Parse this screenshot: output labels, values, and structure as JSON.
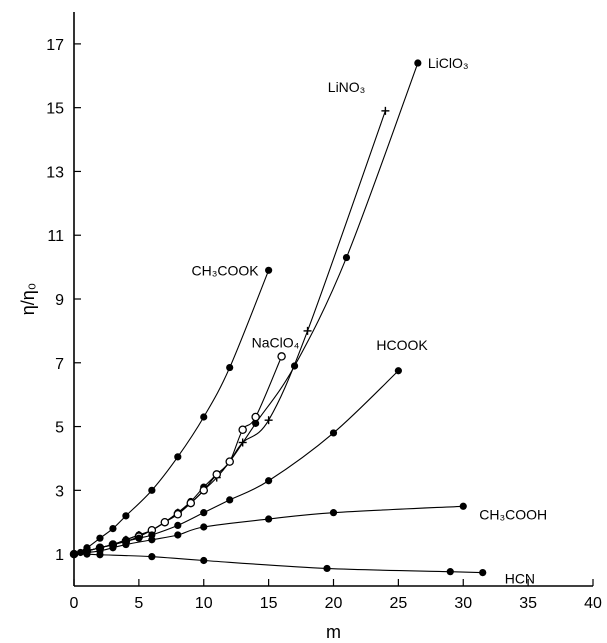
{
  "chart_data": {
    "type": "line",
    "xlabel": "m",
    "ylabel": "η/η₀",
    "xlim": [
      0,
      40
    ],
    "ylim": [
      0,
      18
    ],
    "xticks": [
      0,
      5,
      10,
      15,
      20,
      25,
      30,
      35,
      40
    ],
    "yticks": [
      1,
      3,
      5,
      7,
      9,
      11,
      13,
      15,
      17
    ],
    "grid": false,
    "series": [
      {
        "name": "LiClO₃",
        "marker": "filled-circle",
        "x": [
          0,
          0.5,
          1,
          2,
          3,
          4,
          5,
          6,
          7,
          8,
          9,
          10,
          11,
          12,
          14,
          17,
          21,
          26.5
        ],
        "y": [
          1,
          1.05,
          1.1,
          1.2,
          1.3,
          1.45,
          1.6,
          1.75,
          2.0,
          2.3,
          2.65,
          3.1,
          3.5,
          3.9,
          5.1,
          6.9,
          10.3,
          16.4
        ]
      },
      {
        "name": "LiNO₃",
        "marker": "plus",
        "x": [
          0,
          1,
          2,
          3,
          4,
          5,
          6,
          7,
          8,
          9,
          10,
          11,
          12,
          13,
          15,
          18,
          24
        ],
        "y": [
          1,
          1.1,
          1.2,
          1.3,
          1.45,
          1.6,
          1.75,
          2.0,
          2.3,
          2.6,
          3.0,
          3.4,
          3.9,
          4.5,
          5.2,
          8.0,
          14.9
        ]
      },
      {
        "name": "NaClO₄",
        "marker": "open-circle",
        "x": [
          0,
          1,
          2,
          3,
          4,
          5,
          6,
          7,
          8,
          9,
          10,
          11,
          12,
          13,
          14,
          16
        ],
        "y": [
          1,
          1.1,
          1.2,
          1.3,
          1.4,
          1.55,
          1.75,
          2.0,
          2.25,
          2.6,
          3.0,
          3.5,
          3.9,
          4.9,
          5.3,
          7.2
        ]
      },
      {
        "name": "CH₃COOK",
        "marker": "filled-circle",
        "x": [
          0,
          1,
          2,
          3,
          4,
          6,
          8,
          10,
          12,
          15
        ],
        "y": [
          1,
          1.2,
          1.5,
          1.8,
          2.2,
          3.0,
          4.05,
          5.3,
          6.85,
          9.9
        ]
      },
      {
        "name": "HCOOK",
        "marker": "filled-circle",
        "x": [
          0,
          1,
          2,
          3,
          4,
          5,
          6,
          8,
          10,
          12,
          15,
          20,
          25
        ],
        "y": [
          1,
          1.1,
          1.2,
          1.3,
          1.4,
          1.5,
          1.6,
          1.9,
          2.3,
          2.7,
          3.3,
          4.8,
          6.75
        ]
      },
      {
        "name": "CH₃COOH",
        "marker": "filled-circle",
        "x": [
          0,
          1,
          2,
          3,
          4,
          6,
          8,
          10,
          15,
          20,
          30
        ],
        "y": [
          1,
          1.05,
          1.1,
          1.2,
          1.3,
          1.45,
          1.6,
          1.85,
          2.1,
          2.3,
          2.5
        ]
      },
      {
        "name": "HCN",
        "marker": "filled-circle",
        "x": [
          0,
          1,
          2,
          6,
          10,
          19.5,
          29,
          31.5
        ],
        "y": [
          1,
          1.0,
          0.98,
          0.92,
          0.8,
          0.55,
          0.45,
          0.42
        ]
      }
    ]
  }
}
